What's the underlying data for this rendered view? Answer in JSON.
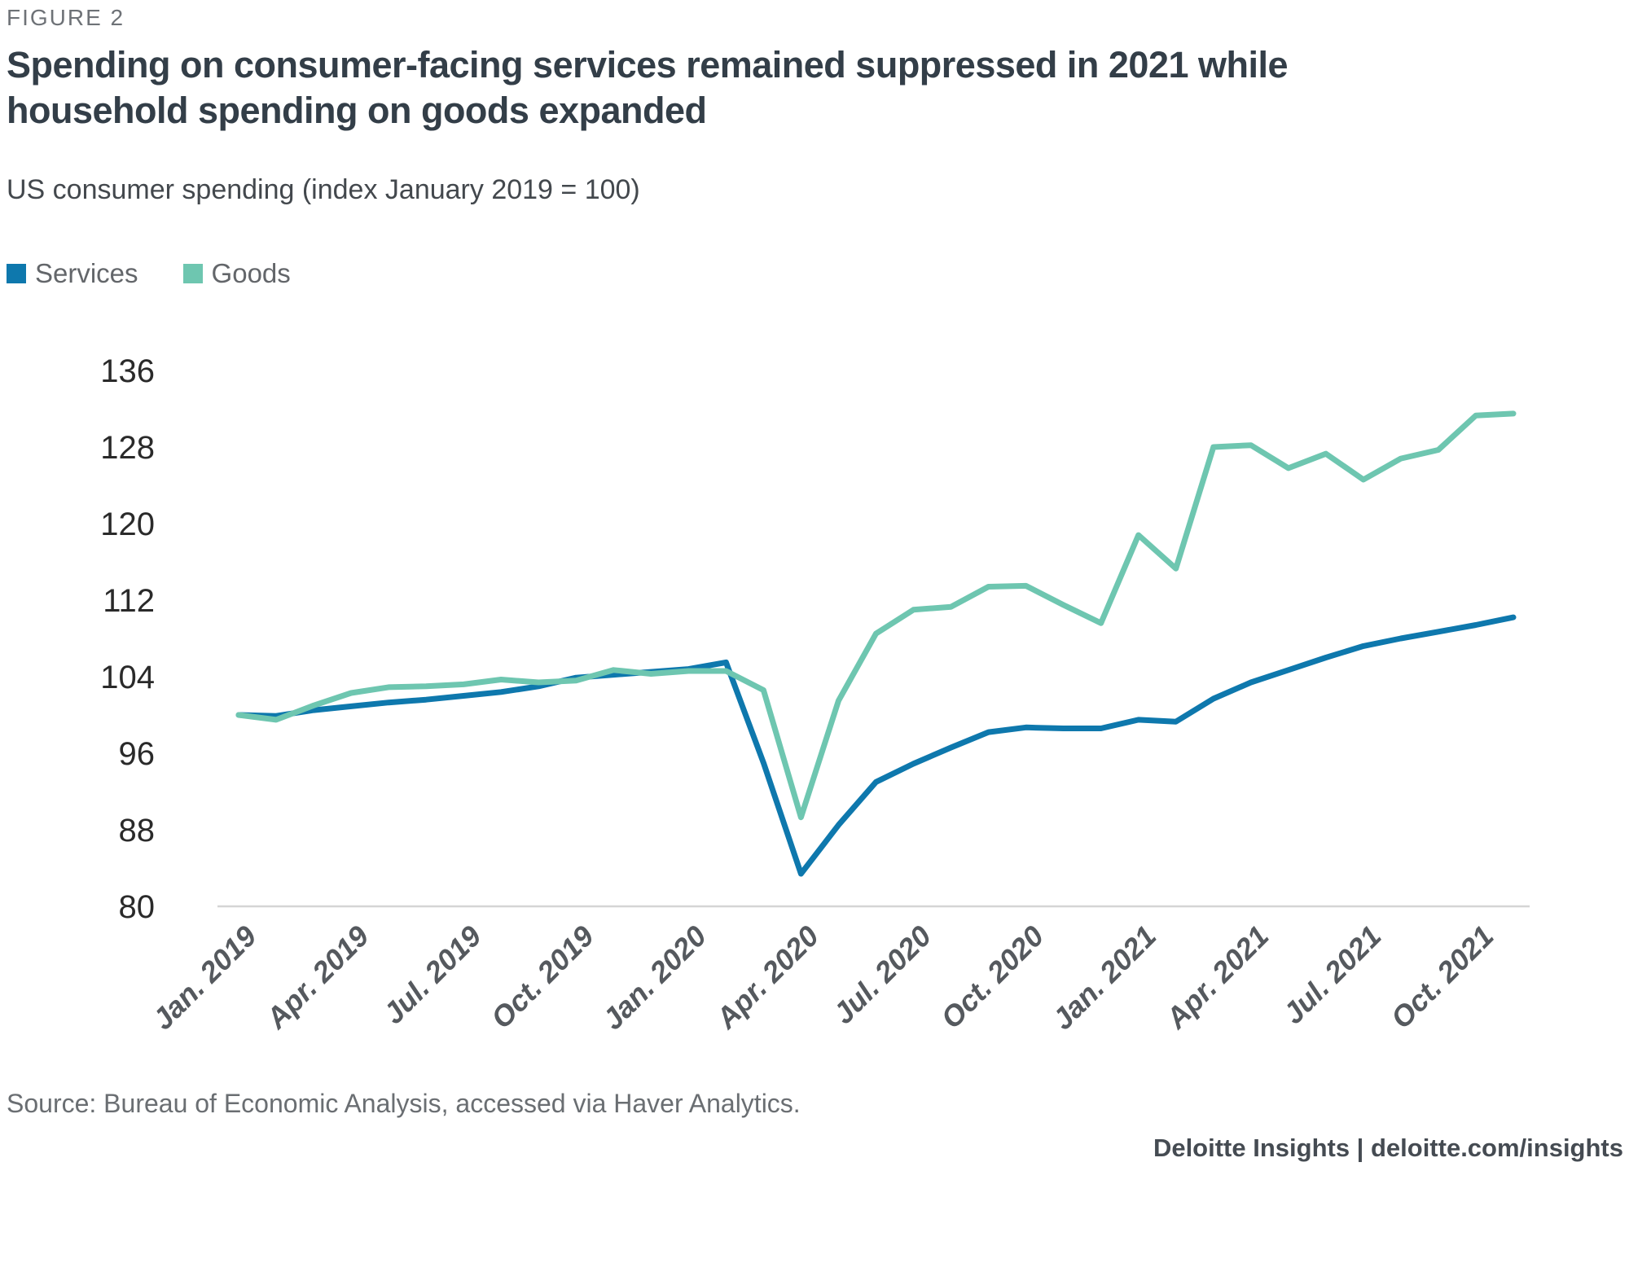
{
  "header": {
    "figure_label": "FIGURE 2",
    "title_line1": "Spending on consumer-facing services remained suppressed in 2021 while",
    "title_line2": "household spending on goods expanded",
    "subtitle": "US consumer spending (index January 2019 = 100)"
  },
  "chart_data": {
    "type": "line",
    "title": "US consumer spending (index January 2019 = 100)",
    "x": [
      "Jan. 2019",
      "Feb. 2019",
      "Mar. 2019",
      "Apr. 2019",
      "May 2019",
      "Jun. 2019",
      "Jul. 2019",
      "Aug. 2019",
      "Sep. 2019",
      "Oct. 2019",
      "Nov. 2019",
      "Dec. 2019",
      "Jan. 2020",
      "Feb. 2020",
      "Mar. 2020",
      "Apr. 2020",
      "May 2020",
      "Jun. 2020",
      "Jul. 2020",
      "Aug. 2020",
      "Sep. 2020",
      "Oct. 2020",
      "Nov. 2020",
      "Dec. 2020",
      "Jan. 2021",
      "Feb. 2021",
      "Mar. 2021",
      "Apr. 2021",
      "May 2021",
      "Jun. 2021",
      "Jul. 2021",
      "Aug. 2021",
      "Sep. 2021",
      "Oct. 2021",
      "Nov. 2021"
    ],
    "x_tick_labels": [
      "Jan. 2019",
      "Apr. 2019",
      "Jul. 2019",
      "Oct. 2019",
      "Jan. 2020",
      "Apr. 2020",
      "Jul. 2020",
      "Oct. 2020",
      "Jan. 2021",
      "Apr. 2021",
      "Jul. 2021",
      "Oct. 2021"
    ],
    "x_tick_every": 3,
    "y_ticks": [
      136,
      128,
      120,
      112,
      104,
      96,
      88,
      80
    ],
    "ylim": [
      80,
      136
    ],
    "grid": false,
    "legend_position": "top-left",
    "series": [
      {
        "name": "Services",
        "color": "#0e78ad",
        "values": [
          100.0,
          99.9,
          100.5,
          100.9,
          101.3,
          101.6,
          102.0,
          102.4,
          103.0,
          103.9,
          104.2,
          104.5,
          104.8,
          105.5,
          95.0,
          83.4,
          88.5,
          93.0,
          94.9,
          96.6,
          98.2,
          98.7,
          98.6,
          98.6,
          99.5,
          99.3,
          101.7,
          103.4,
          104.7,
          106.0,
          107.2,
          108.0,
          108.7,
          109.4,
          110.2
        ]
      },
      {
        "name": "Goods",
        "color": "#6ec6b0",
        "values": [
          100.0,
          99.5,
          101.0,
          102.3,
          102.9,
          103.0,
          103.2,
          103.7,
          103.4,
          103.6,
          104.7,
          104.3,
          104.6,
          104.6,
          102.6,
          89.3,
          101.5,
          108.5,
          111.0,
          111.3,
          113.4,
          113.5,
          111.5,
          109.6,
          118.8,
          115.3,
          128.0,
          128.2,
          125.8,
          127.3,
          124.6,
          126.8,
          127.7,
          131.3,
          131.5
        ]
      }
    ]
  },
  "footer": {
    "source": "Source: Bureau of Economic Analysis, accessed via Haver Analytics.",
    "attribution": "Deloitte Insights | deloitte.com/insights"
  }
}
